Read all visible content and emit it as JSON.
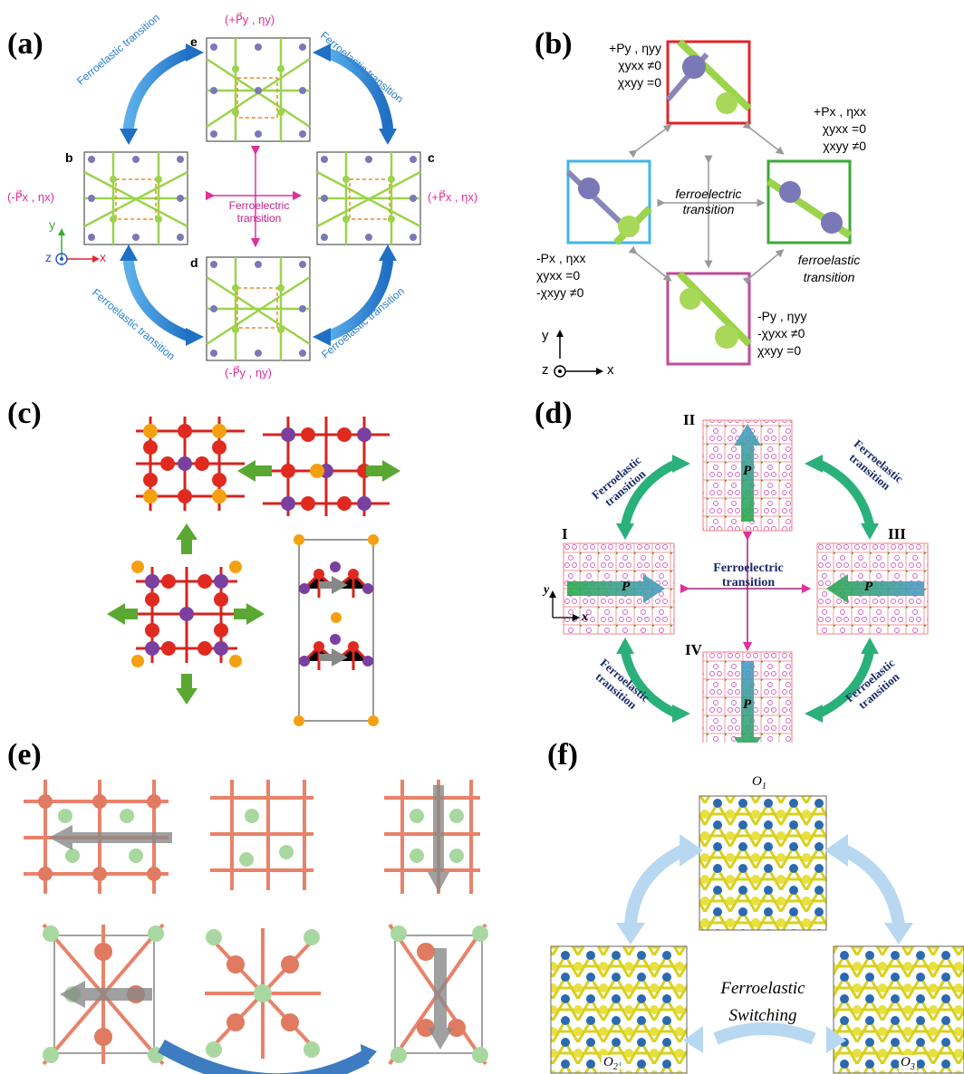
{
  "panels": {
    "a": {
      "label": "(a)",
      "state_e": "e",
      "state_b": "b",
      "state_c": "c",
      "state_d": "d",
      "ann_e": "(+P⃗y , ηy)",
      "ann_b": "(-P⃗x , ηx)",
      "ann_c": "(+P⃗x , ηx)",
      "ann_d": "(-P⃗y , ηy)",
      "ferroelastic": "Ferroelastic transition",
      "ferroelectric_1": "Ferroelectric",
      "ferroelectric_2": "transition",
      "axis_y": "y",
      "axis_z": "z",
      "axis_x": "x",
      "colors": {
        "arrow_blue": "#2a7fd4",
        "magenta": "#e0309a",
        "green_atom": "#9bd44a",
        "purple_atom": "#7b78b8",
        "dash": "#f08a24"
      }
    },
    "b": {
      "label": "(b)",
      "top": [
        "+Py , ηyy",
        "χyxx ≠0",
        "χxyy =0"
      ],
      "right": [
        "+Px , ηxx",
        "χyxx =0",
        "χxyy ≠0"
      ],
      "left": [
        "-Px , ηxx",
        "χyxx =0",
        "-χxyy ≠0"
      ],
      "bottom": [
        "-Py , ηyy",
        "-χyxx ≠0",
        "χxyy =0"
      ],
      "center_1": "ferroelectric",
      "center_2": "transition",
      "elastic_1": "ferroelastic",
      "elastic_2": "transition",
      "axis_y": "y",
      "axis_z": "z",
      "axis_x": "x",
      "colors": {
        "top": "#e0242a",
        "right": "#3aaa35",
        "left": "#41b6e6",
        "bottom": "#c04a9a"
      }
    },
    "c": {
      "label": "(c)"
    },
    "d": {
      "label": "(d)",
      "states": [
        "I",
        "II",
        "III",
        "IV"
      ],
      "p": "P",
      "ferroelastic_1": "Ferroelastic",
      "ferroelastic_2": "transition",
      "ferroelectric_1": "Ferroelectric",
      "ferroelectric_2": "transition",
      "axis_y": "y",
      "axis_x": "x"
    },
    "e": {
      "label": "(e)"
    },
    "f": {
      "label": "(f)",
      "o1": "O",
      "o1_sub": "1",
      "o2": "O",
      "o2_sub": "2",
      "o3": "O",
      "o3_sub": "3",
      "center_1": "Ferroelastic",
      "center_2": "Switching"
    }
  }
}
